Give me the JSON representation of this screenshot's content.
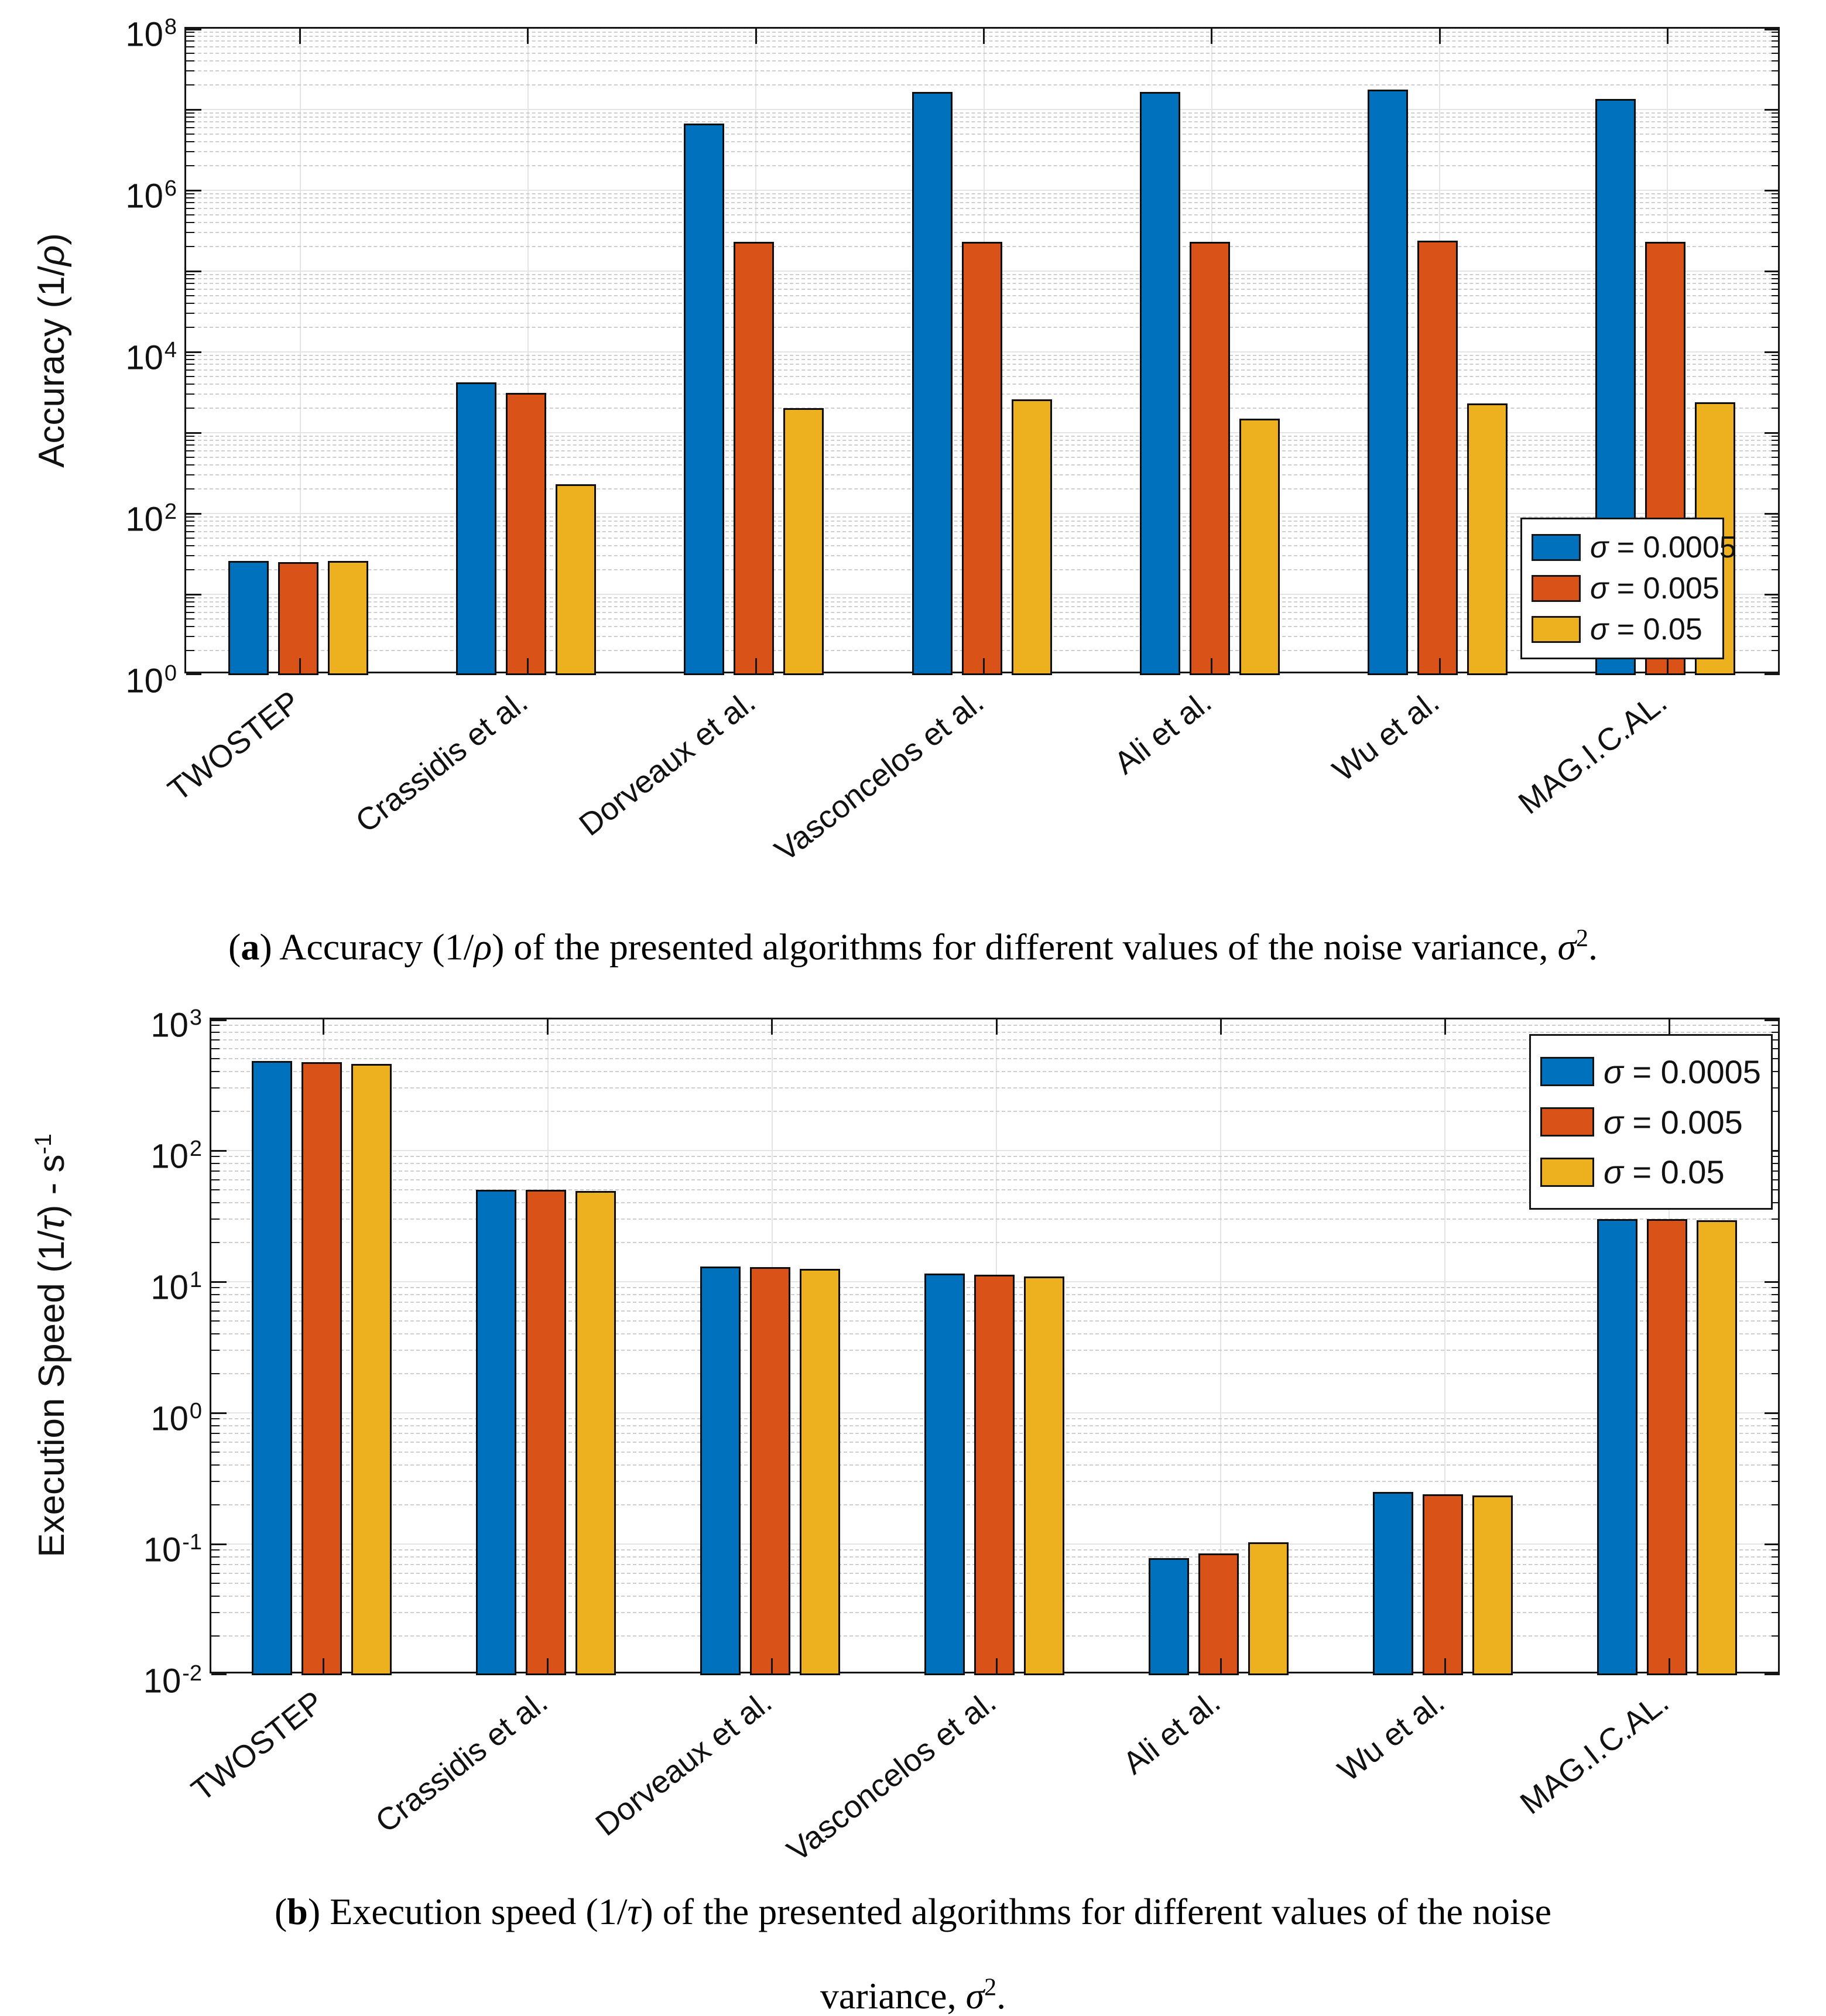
{
  "captions": {
    "a": {
      "letter": "a",
      "t1": " Accuracy (1/",
      "i1": "ρ",
      "t2": ") of the presented algorithms for different values of the noise variance, ",
      "i2": "σ",
      "sup": "2",
      "t3": "."
    },
    "b": {
      "letter": "b",
      "t1": " Execution speed (1/",
      "i1": "τ",
      "t2": ") of the presented algorithms for different values of the noise",
      "t3": "variance, ",
      "i2": "σ",
      "sup": "2",
      "t4": "."
    }
  },
  "chart_data": [
    {
      "type": "bar",
      "y_scale": "log10",
      "ylim_log": [
        0,
        8
      ],
      "grid": "major+minor",
      "legend_position": "bottom-right",
      "yaxis": {
        "base": "10",
        "labeled_exponents": [
          0,
          2,
          4,
          6,
          8
        ]
      },
      "ylabel": {
        "pre": "Accuracy (1/",
        "sym": "ρ",
        "post": ")",
        "sup": ""
      },
      "categories": [
        "TWOSTEP",
        "Crassidis et al.",
        "Dorveaux et al.",
        "Vasconcelos et al.",
        "Ali et al.",
        "Wu et al.",
        "MAG.I.C.AL."
      ],
      "series": [
        {
          "name": "σ = 0.0005",
          "sym": "σ",
          "rest": " = 0.0005",
          "color": "#0072BD",
          "values": [
            26,
            4200,
            6700000,
            16500000,
            16500000,
            17500000,
            13500000
          ]
        },
        {
          "name": "σ = 0.005",
          "sym": "σ",
          "rest": " = 0.005",
          "color": "#D95319",
          "values": [
            25,
            3100,
            230000,
            230000,
            230000,
            240000,
            230000
          ]
        },
        {
          "name": "σ = 0.05",
          "sym": "σ",
          "rest": " = 0.05",
          "color": "#EDB120",
          "values": [
            26,
            230,
            2000,
            2600,
            1500,
            2300,
            2400
          ]
        }
      ]
    },
    {
      "type": "bar",
      "y_scale": "log10",
      "ylim_log": [
        -2,
        3
      ],
      "grid": "major+minor",
      "legend_position": "top-right",
      "yaxis": {
        "base": "10",
        "labeled_exponents": [
          -2,
          -1,
          0,
          1,
          2,
          3
        ]
      },
      "ylabel": {
        "pre": "Execution Speed (1/",
        "sym": "τ",
        "post": ") - s",
        "sup": "-1"
      },
      "categories": [
        "TWOSTEP",
        "Crassidis et al.",
        "Dorveaux et al.",
        "Vasconcelos et al.",
        "Ali et al.",
        "Wu et al.",
        "MAG.I.C.AL."
      ],
      "series": [
        {
          "name": "σ = 0.0005",
          "sym": "σ",
          "rest": " = 0.0005",
          "color": "#0072BD",
          "values": [
            480,
            50,
            13,
            11.5,
            0.078,
            0.25,
            30
          ]
        },
        {
          "name": "σ = 0.005",
          "sym": "σ",
          "rest": " = 0.005",
          "color": "#D95319",
          "values": [
            470,
            50,
            12.9,
            11.3,
            0.085,
            0.24,
            30
          ]
        },
        {
          "name": "σ = 0.05",
          "sym": "σ",
          "rest": " = 0.05",
          "color": "#EDB120",
          "values": [
            460,
            49,
            12.6,
            11.0,
            0.103,
            0.235,
            29.5
          ]
        }
      ]
    }
  ]
}
